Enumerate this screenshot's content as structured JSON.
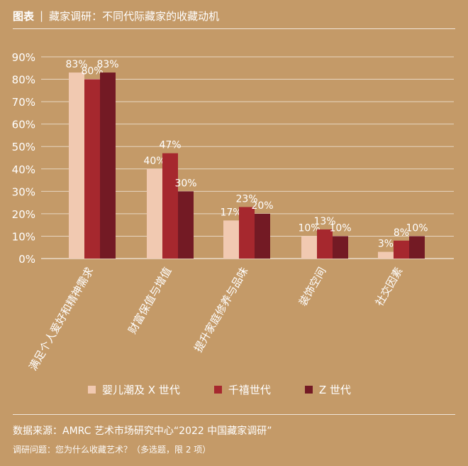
{
  "header": {
    "tag": "图表",
    "separator": "|",
    "title": "藏家调研：不同代际藏家的收藏动机"
  },
  "chart_data": {
    "type": "bar",
    "title": "藏家调研：不同代际藏家的收藏动机",
    "categories": [
      "满足个人爱好和精神需求",
      "财富保值与增值",
      "提升家庭修养与品味",
      "装饰空间",
      "社交因素"
    ],
    "series": [
      {
        "name": "婴儿潮及 X 世代",
        "values": [
          83,
          40,
          17,
          10,
          3
        ],
        "color": "#f1c9b1"
      },
      {
        "name": "千禧世代",
        "values": [
          80,
          47,
          23,
          13,
          8
        ],
        "color": "#a6282e"
      },
      {
        "name": "Z 世代",
        "values": [
          83,
          30,
          20,
          10,
          10
        ],
        "color": "#731a24"
      }
    ],
    "data_labels": [
      [
        "83%",
        "80%",
        "83%"
      ],
      [
        "40%",
        "47%",
        "30%"
      ],
      [
        "17%",
        "23%",
        "20%"
      ],
      [
        "10%",
        "13%",
        "10%"
      ],
      [
        "3%",
        "8%",
        "10%"
      ]
    ],
    "yticks": [
      "0%",
      "10%",
      "20%",
      "30%",
      "40%",
      "50%",
      "60%",
      "70%",
      "80%",
      "90%"
    ],
    "ylim": [
      0,
      90
    ],
    "grid": true,
    "legend_position": "bottom"
  },
  "legend": {
    "items": [
      {
        "label": "婴儿潮及 X 世代",
        "color": "#f1c9b1"
      },
      {
        "label": "千禧世代",
        "color": "#a6282e"
      },
      {
        "label": "Z 世代",
        "color": "#731a24"
      }
    ]
  },
  "footer": {
    "source": "数据来源：AMRC 艺术市场研究中心“2022 中国藏家调研”",
    "question": "调研问题：您为什么收藏艺术？（多选题，限 2 项）"
  }
}
